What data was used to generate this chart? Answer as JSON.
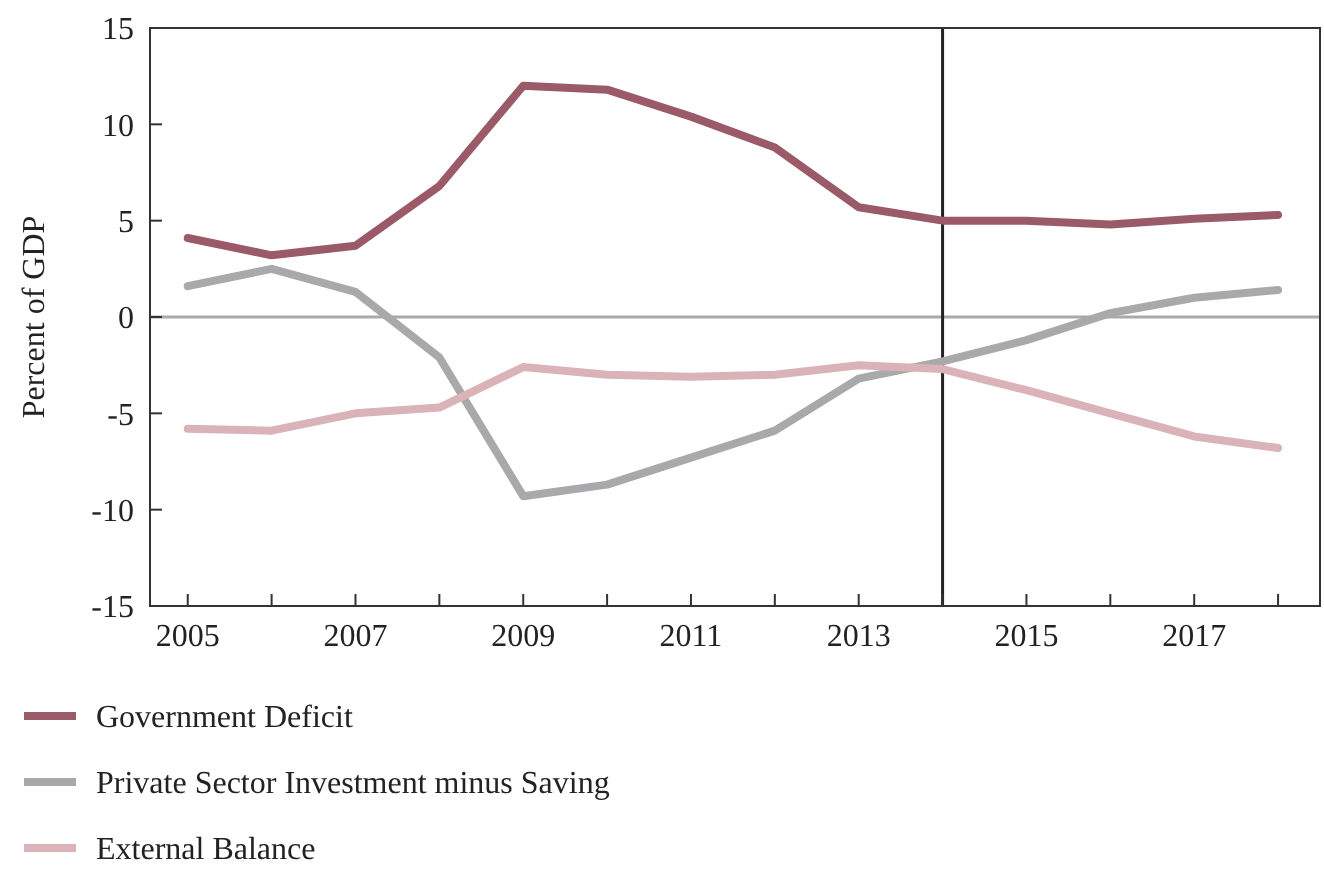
{
  "chart_data": {
    "type": "line",
    "ylabel": "Percent of GDP",
    "x": [
      2005,
      2006,
      2007,
      2008,
      2009,
      2010,
      2011,
      2012,
      2013,
      2014,
      2015,
      2016,
      2017,
      2018
    ],
    "xlim": [
      2004.55,
      2018.5
    ],
    "xticks": [
      2005,
      {
        "value": 2006,
        "label": null
      },
      2007,
      {
        "value": 2008,
        "label": null
      },
      2009,
      {
        "value": 2010,
        "label": null
      },
      2011,
      {
        "value": 2012,
        "label": null
      },
      2013,
      {
        "value": 2014,
        "label": null
      },
      2015,
      {
        "value": 2016,
        "label": null
      },
      2017,
      {
        "value": 2018,
        "label": null
      }
    ],
    "ylim": [
      -15,
      15
    ],
    "yticks": [
      -15,
      -10,
      -5,
      0,
      5,
      10,
      15
    ],
    "grid": false,
    "legend": "bottom",
    "line_style": "solid",
    "marker": "none",
    "ref_lines": [
      {
        "axis": "y",
        "value": 0,
        "color": "#a9a9ab"
      },
      {
        "axis": "x",
        "value": 2014,
        "color": "#222222"
      }
    ],
    "series": [
      {
        "name": "Government Deficit",
        "color": "#9b5a67",
        "values": [
          4.1,
          3.2,
          3.7,
          6.8,
          12.0,
          11.8,
          10.4,
          8.8,
          5.7,
          5.0,
          5.0,
          4.8,
          5.1,
          5.3
        ]
      },
      {
        "name": "Private Sector Investment minus Saving",
        "color": "#a9a9ab",
        "values": [
          1.6,
          2.5,
          1.3,
          -2.1,
          -9.3,
          -8.7,
          -7.3,
          -5.9,
          -3.2,
          -2.3,
          -1.2,
          0.2,
          1.0,
          1.4
        ]
      },
      {
        "name": "External Balance",
        "color": "#d9b3b8",
        "values": [
          -5.8,
          -5.9,
          -5.0,
          -4.7,
          -2.6,
          -3.0,
          -3.1,
          -3.0,
          -2.5,
          -2.7,
          -3.8,
          -5.0,
          -6.2,
          -6.8
        ]
      }
    ]
  }
}
